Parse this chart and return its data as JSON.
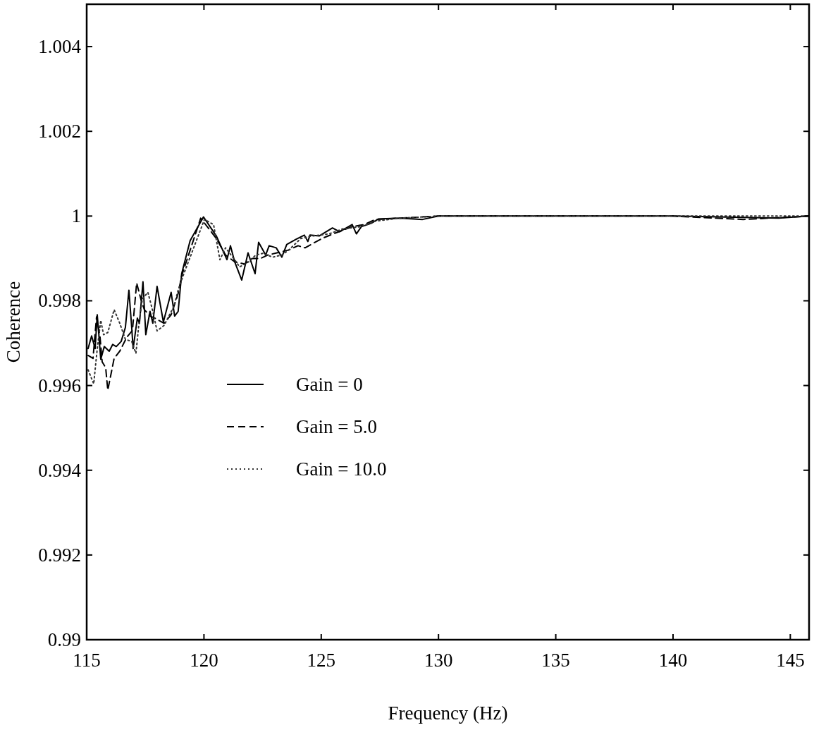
{
  "chart_data": {
    "type": "line",
    "xlabel": "Frequency (Hz)",
    "ylabel": "Coherence",
    "xlim": [
      115,
      145.8
    ],
    "xticks": [
      115,
      120,
      125,
      130,
      135,
      140,
      145
    ],
    "ylim": [
      0.99,
      1.005
    ],
    "yticks": [
      0.99,
      0.992,
      0.994,
      0.996,
      0.998,
      {
        "value": 1,
        "label": "1"
      },
      1.002,
      1.004
    ],
    "grid": false,
    "legend": "left",
    "marker": "none",
    "series": [
      {
        "name": "Gain = 0",
        "color": "#000000",
        "line_style": "solid",
        "x": [
          115.06,
          115.21,
          115.36,
          115.45,
          115.6,
          115.75,
          115.96,
          116.11,
          116.26,
          116.47,
          116.65,
          116.8,
          116.92,
          116.98,
          117.16,
          117.25,
          117.4,
          117.52,
          117.7,
          117.82,
          118,
          118.27,
          118.6,
          118.75,
          118.9,
          119.05,
          119.41,
          119.98,
          120.32,
          120.53,
          120.98,
          121.13,
          121.31,
          121.61,
          121.88,
          122.18,
          122.33,
          122.63,
          122.78,
          123.08,
          123.32,
          123.53,
          123.92,
          124.28,
          124.43,
          124.52,
          124.91,
          125.48,
          125.78,
          126.32,
          126.5,
          126.71,
          127.13,
          127.43,
          128.33,
          129.32,
          130,
          135,
          140,
          144.5,
          145.8
        ],
        "values": [
          0.99687,
          0.99717,
          0.99687,
          0.99767,
          0.99662,
          0.99692,
          0.99681,
          0.99697,
          0.99692,
          0.99704,
          0.99737,
          0.99825,
          0.99737,
          0.99687,
          0.99759,
          0.99747,
          0.99845,
          0.9972,
          0.99775,
          0.99747,
          0.99834,
          0.9975,
          0.9982,
          0.99764,
          0.99775,
          0.99864,
          0.99942,
          0.99998,
          0.9997,
          0.99953,
          0.99897,
          0.9993,
          0.99892,
          0.99849,
          0.99913,
          0.99864,
          0.99938,
          0.99908,
          0.9993,
          0.99925,
          0.99903,
          0.99933,
          0.99945,
          0.99955,
          0.9994,
          0.99955,
          0.99953,
          0.99972,
          0.99963,
          0.9998,
          0.99958,
          0.99975,
          0.99983,
          0.99993,
          0.99995,
          0.99992,
          1,
          1,
          1,
          0.99995,
          1
        ]
      },
      {
        "name": "Gain = 5.0",
        "color": "#000000",
        "line_style": "dashed",
        "x": [
          115.06,
          115.27,
          115.42,
          115.57,
          115.66,
          115.81,
          115.9,
          116.17,
          116.41,
          116.71,
          116.95,
          117.13,
          117.31,
          117.46,
          117.7,
          117.91,
          118.3,
          118.6,
          118.9,
          119.05,
          119.86,
          120.53,
          120.92,
          121.31,
          121.73,
          122.06,
          122.42,
          122.72,
          123.11,
          123.62,
          124.01,
          124.31,
          124.73,
          125.03,
          125.51,
          126.32,
          126.83,
          127.31,
          128.33,
          130,
          135,
          140,
          143,
          145.8
        ],
        "values": [
          0.99671,
          0.99664,
          0.99762,
          0.99714,
          0.99656,
          0.99642,
          0.99589,
          0.99664,
          0.99681,
          0.99714,
          0.9973,
          0.99842,
          0.99804,
          0.99779,
          0.99764,
          0.99759,
          0.99747,
          0.99767,
          0.99817,
          0.99859,
          0.99995,
          0.99947,
          0.99908,
          0.99892,
          0.99887,
          0.999,
          0.999,
          0.99908,
          0.99913,
          0.9992,
          0.9993,
          0.99925,
          0.99938,
          0.99947,
          0.99958,
          0.99975,
          0.9998,
          0.99992,
          0.99995,
          1,
          1,
          1,
          0.99992,
          1
        ]
      },
      {
        "name": "Gain = 10.0",
        "color": "#333333",
        "line_style": "dotted",
        "x": [
          115.06,
          115.3,
          115.45,
          115.6,
          115.72,
          115.9,
          116.17,
          116.41,
          116.65,
          116.92,
          117.1,
          117.22,
          117.37,
          117.61,
          117.82,
          118,
          118.3,
          118.72,
          118.9,
          119.11,
          120.02,
          120.41,
          120.68,
          120.92,
          121.31,
          121.52,
          121.91,
          122.21,
          122.51,
          122.93,
          123.32,
          123.62,
          124.13,
          124.61,
          125.33,
          125.93,
          126.71,
          127.31,
          128.33,
          130,
          135,
          140,
          145.8
        ],
        "values": [
          0.99637,
          0.99604,
          0.99687,
          0.99754,
          0.9972,
          0.99725,
          0.99779,
          0.99747,
          0.99709,
          0.99704,
          0.99676,
          0.99742,
          0.99804,
          0.9982,
          0.99775,
          0.99729,
          0.99742,
          0.99787,
          0.99825,
          0.99859,
          0.99992,
          0.9998,
          0.99897,
          0.99925,
          0.99897,
          0.9988,
          0.99892,
          0.99908,
          0.99912,
          0.99903,
          0.99908,
          0.9992,
          0.99947,
          0.99953,
          0.99958,
          0.9997,
          0.99975,
          0.99988,
          0.99995,
          1,
          1,
          1,
          1
        ]
      }
    ]
  }
}
